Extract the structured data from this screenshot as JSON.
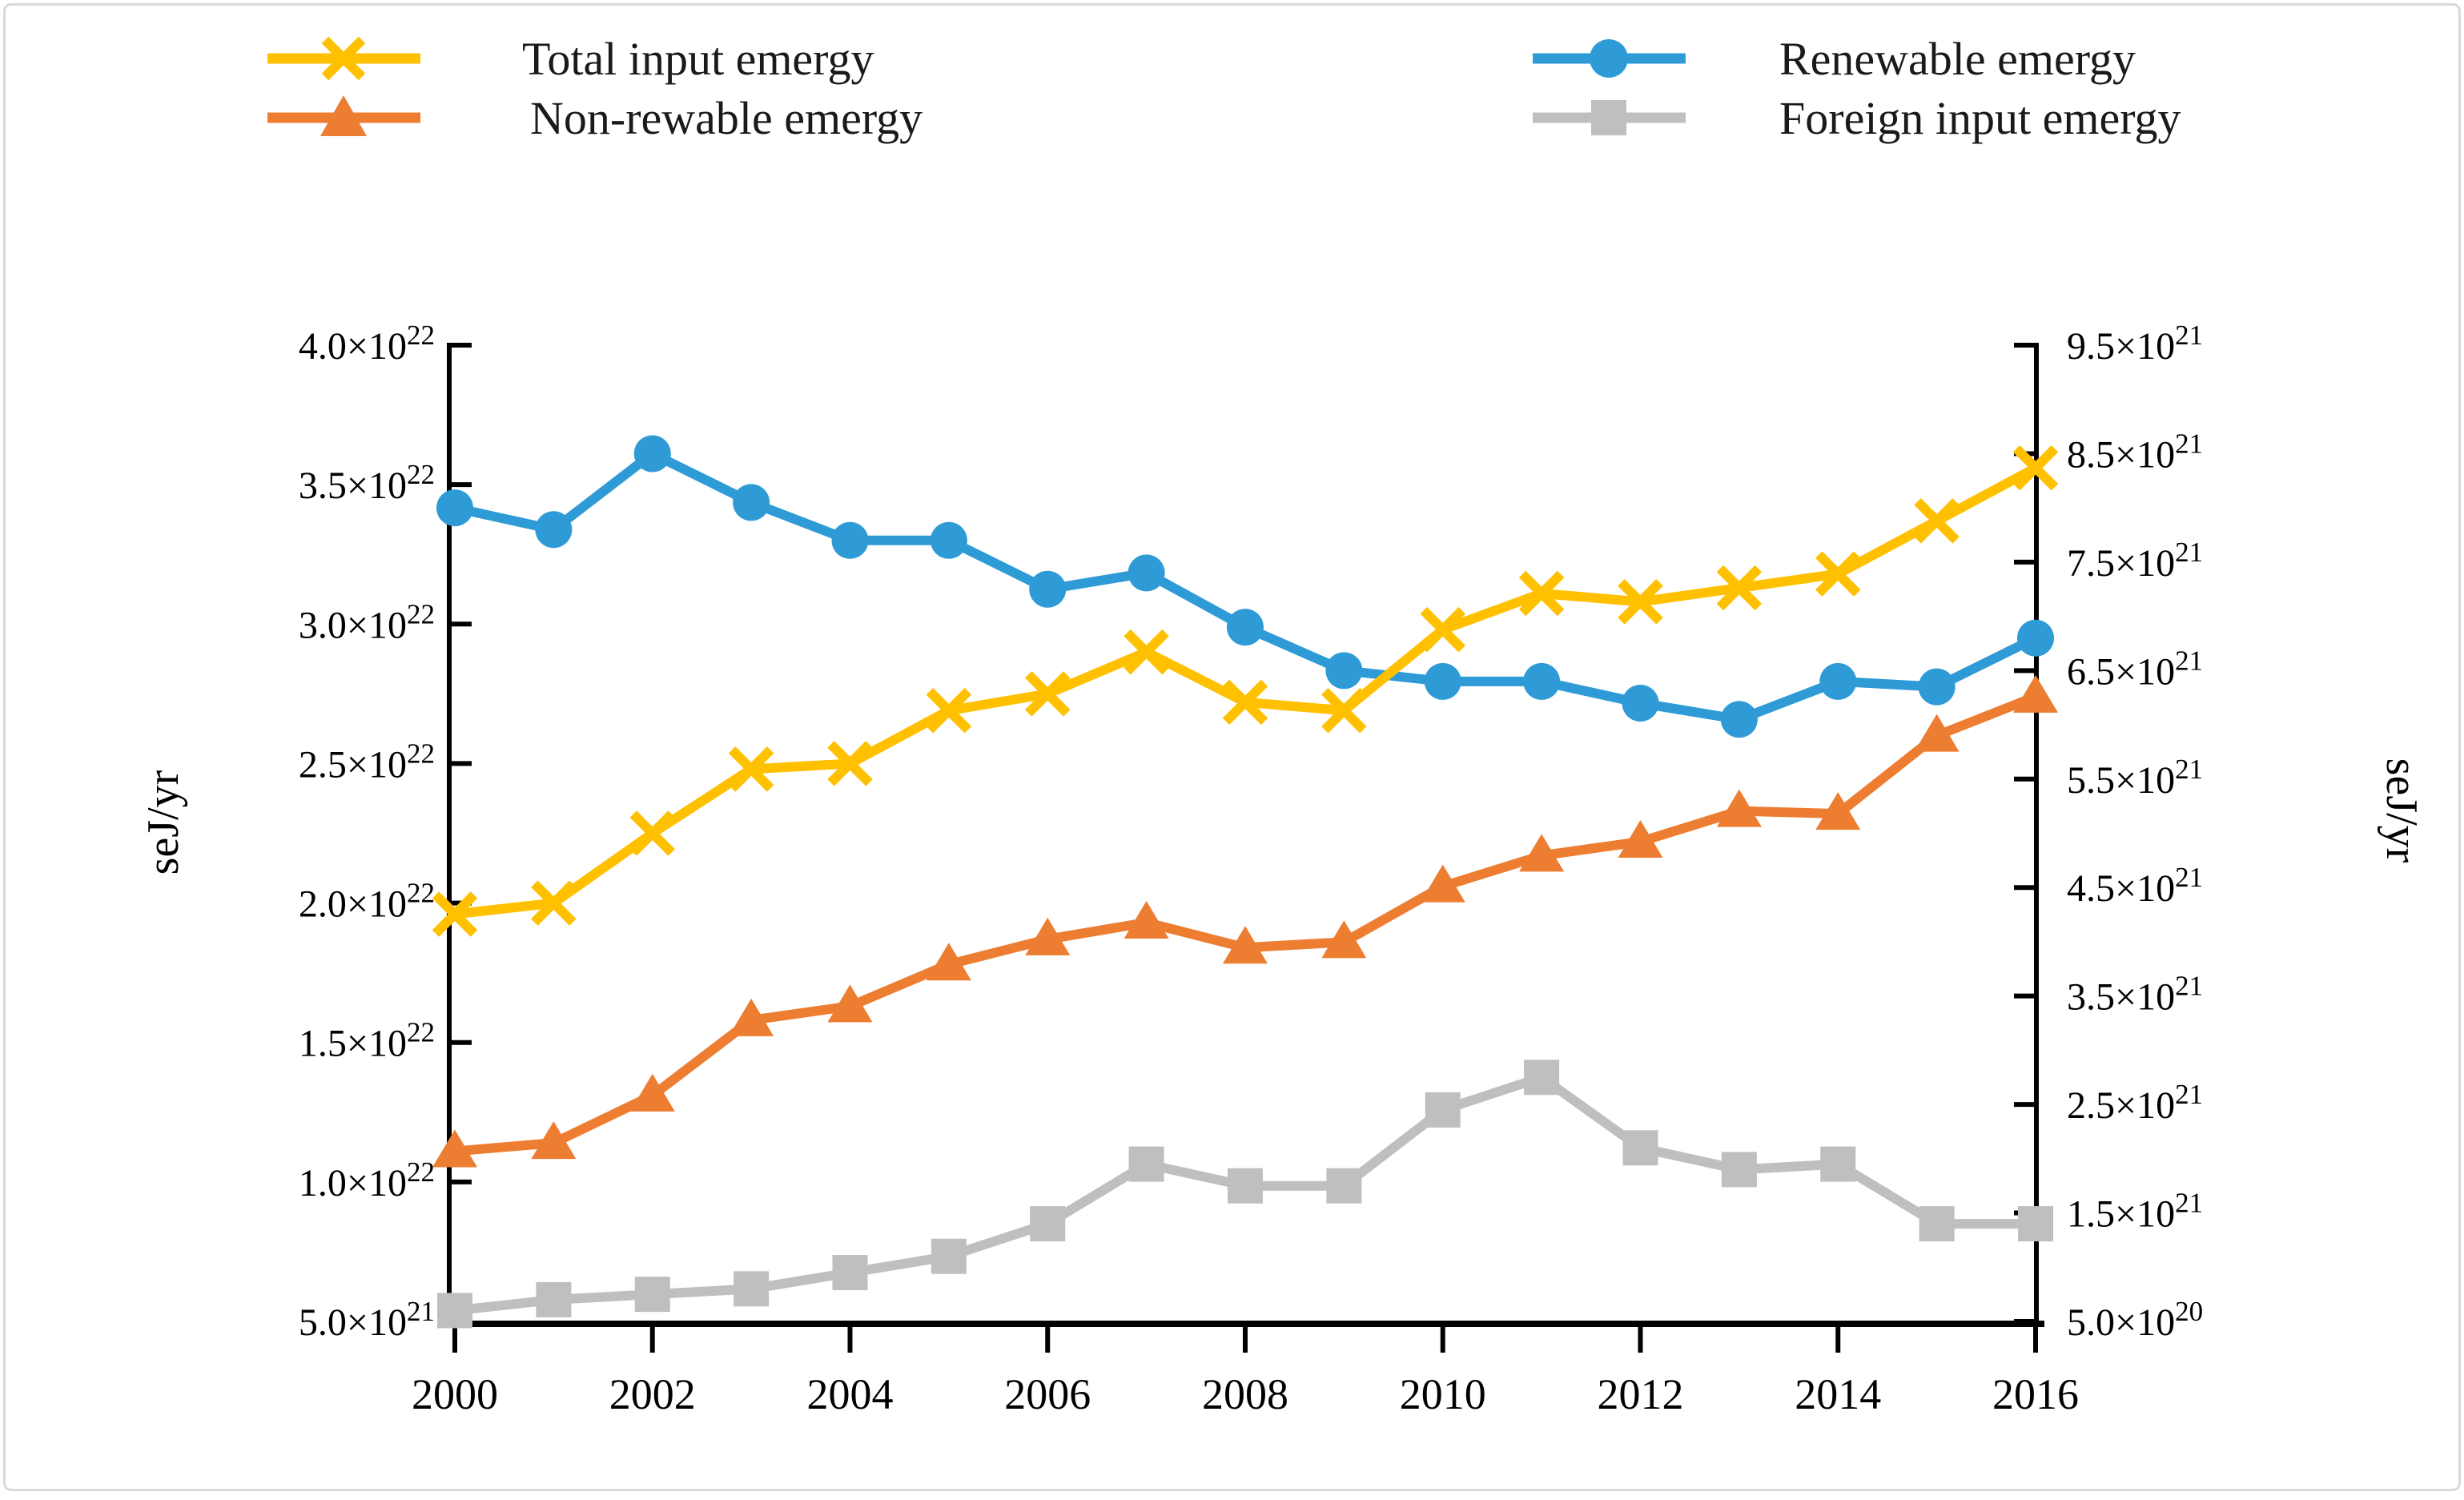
{
  "figure": {
    "background": "#ffffff",
    "border_color": "#d9d9d9",
    "text_color": "#000000",
    "axis_color": "#000000"
  },
  "legend": {
    "position": "top, two columns",
    "items": [
      {
        "label": "Total input emergy",
        "marker": "x-cross",
        "color": "#FFC000"
      },
      {
        "label": "Non-rewable emergy",
        "marker": "triangle",
        "color": "#ED7D31"
      },
      {
        "label": "Renewable emergy",
        "marker": "circle",
        "color": "#2E9BD6"
      },
      {
        "label": "Foreign input emergy",
        "marker": "square",
        "color": "#BFBFBF"
      }
    ]
  },
  "chart_data": {
    "type": "line",
    "title": "",
    "x": [
      2000,
      2001,
      2002,
      2003,
      2004,
      2005,
      2006,
      2007,
      2008,
      2009,
      2010,
      2011,
      2012,
      2013,
      2014,
      2015,
      2016
    ],
    "x_axis": {
      "tick_years": [
        2000,
        2002,
        2004,
        2006,
        2008,
        2010,
        2012,
        2014,
        2016
      ],
      "tick_labels": [
        "2000",
        "2002",
        "2004",
        "2006",
        "2008",
        "2010",
        "2012",
        "2014",
        "2016"
      ]
    },
    "axes": {
      "left": {
        "unit_label": "seJ/yr",
        "min": 0.5,
        "max": 4.0,
        "unit_multiplier": "1e22",
        "ticks": [
          {
            "text": "4.0×10²²",
            "base": "4.0×10",
            "exp": "22",
            "value": 4.0
          },
          {
            "text": "3.5×10²²",
            "base": "3.5×10",
            "exp": "22",
            "value": 3.5
          },
          {
            "text": "3.0×10²²",
            "base": "3.0×10",
            "exp": "22",
            "value": 3.0
          },
          {
            "text": "2.5×10²²",
            "base": "2.5×10",
            "exp": "22",
            "value": 2.5
          },
          {
            "text": "2.0×10²²",
            "base": "2.0×10",
            "exp": "22",
            "value": 2.0
          },
          {
            "text": "1.5×10²²",
            "base": "1.5×10",
            "exp": "22",
            "value": 1.5
          },
          {
            "text": "1.0×10²²",
            "base": "1.0×10",
            "exp": "22",
            "value": 1.0
          },
          {
            "text": "5.0×10²¹",
            "base": "5.0×10",
            "exp": "21",
            "value": 0.5
          }
        ]
      },
      "right": {
        "unit_label": "seJ/yr",
        "min": 0.5,
        "max": 9.5,
        "unit_multiplier": "1e21",
        "ticks": [
          {
            "text": "9.5×10²¹",
            "base": "9.5×10",
            "exp": "21",
            "value": 9.5
          },
          {
            "text": "8.5×10²¹",
            "base": "8.5×10",
            "exp": "21",
            "value": 8.5
          },
          {
            "text": "7.5×10²¹",
            "base": "7.5×10",
            "exp": "21",
            "value": 7.5
          },
          {
            "text": "6.5×10²¹",
            "base": "6.5×10",
            "exp": "21",
            "value": 6.5
          },
          {
            "text": "5.5×10²¹",
            "base": "5.5×10",
            "exp": "21",
            "value": 5.5
          },
          {
            "text": "4.5×10²¹",
            "base": "4.5×10",
            "exp": "21",
            "value": 4.5
          },
          {
            "text": "3.5×10²¹",
            "base": "3.5×10",
            "exp": "21",
            "value": 3.5
          },
          {
            "text": "2.5×10²¹",
            "base": "2.5×10",
            "exp": "21",
            "value": 2.5
          },
          {
            "text": "1.5×10²¹",
            "base": "1.5×10",
            "exp": "21",
            "value": 1.5
          },
          {
            "text": "5.0×10²⁰",
            "base": "5.0×10",
            "exp": "20",
            "value": 0.5
          }
        ]
      }
    },
    "series": [
      {
        "name": "Total input emergy",
        "axis": "left",
        "units": "1e22 seJ/yr",
        "color": "#FFC000",
        "marker": "x-cross",
        "values": [
          1.96,
          2.0,
          2.25,
          2.48,
          2.5,
          2.69,
          2.75,
          2.9,
          2.72,
          2.69,
          2.98,
          3.11,
          3.08,
          3.13,
          3.18,
          3.37,
          3.56
        ]
      },
      {
        "name": "Non-rewable emergy",
        "axis": "left",
        "units": "1e22 seJ/yr",
        "color": "#ED7D31",
        "marker": "triangle",
        "values": [
          1.11,
          1.14,
          1.31,
          1.58,
          1.63,
          1.78,
          1.87,
          1.93,
          1.84,
          1.86,
          2.06,
          2.17,
          2.22,
          2.33,
          2.32,
          2.6,
          2.74
        ]
      },
      {
        "name": "Renewable emergy",
        "axis": "right",
        "units": "1e21 seJ/yr",
        "color": "#2E9BD6",
        "marker": "circle",
        "values": [
          8.0,
          7.8,
          8.5,
          8.05,
          7.7,
          7.7,
          7.25,
          7.4,
          6.9,
          6.5,
          6.4,
          6.4,
          6.2,
          6.05,
          6.4,
          6.35,
          6.8
        ]
      },
      {
        "name": "Foreign input emergy",
        "axis": "right",
        "units": "1e21 seJ/yr",
        "color": "#BFBFBF",
        "marker": "square",
        "values": [
          0.6,
          0.7,
          0.75,
          0.8,
          0.95,
          1.1,
          1.4,
          1.95,
          1.75,
          1.75,
          2.45,
          2.75,
          2.1,
          1.9,
          1.95,
          1.4,
          1.4
        ]
      }
    ],
    "grid": false,
    "legend_position": "top"
  }
}
